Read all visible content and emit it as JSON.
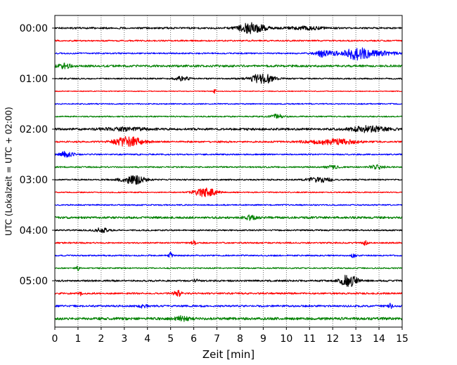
{
  "chart_data": {
    "type": "line",
    "xlabel": "Zeit  [min]",
    "ylabel": "UTC (Lokalzeit = UTC + 02:00)",
    "xlim": [
      0,
      15
    ],
    "x_ticks": [
      "0",
      "1",
      "2",
      "3",
      "4",
      "5",
      "6",
      "7",
      "8",
      "9",
      "10",
      "11",
      "12",
      "13",
      "14",
      "15"
    ],
    "y_tick_labels": [
      "00:00",
      "01:00",
      "02:00",
      "03:00",
      "04:00",
      "05:00"
    ],
    "grid": "vertical dotted lines at each minute",
    "trace_colors": [
      "#000000",
      "#ff0000",
      "#0000ff",
      "#008000"
    ],
    "series": [
      {
        "start_utc": "00:00",
        "color": "#000000",
        "base_amplitude": 1.2,
        "events": [
          {
            "t": 8.5,
            "amp": 7,
            "width": 0.6
          },
          {
            "t": 10.8,
            "amp": 2,
            "width": 0.8
          }
        ]
      },
      {
        "start_utc": "00:15",
        "color": "#ff0000",
        "base_amplitude": 1.0,
        "events": []
      },
      {
        "start_utc": "00:30",
        "color": "#0000ff",
        "base_amplitude": 1.0,
        "events": [
          {
            "t": 13.1,
            "amp": 10,
            "width": 0.5
          },
          {
            "t": 11.8,
            "amp": 3,
            "width": 0.6
          },
          {
            "t": 14.2,
            "amp": 3,
            "width": 0.6
          },
          {
            "t": 11.5,
            "amp": 3,
            "width": 0.15
          }
        ]
      },
      {
        "start_utc": "00:45",
        "color": "#008000",
        "base_amplitude": 1.5,
        "events": [
          {
            "t": 0.4,
            "amp": 3,
            "width": 0.3
          }
        ]
      },
      {
        "start_utc": "01:00",
        "color": "#000000",
        "base_amplitude": 1.0,
        "events": [
          {
            "t": 8.95,
            "amp": 7,
            "width": 0.5
          },
          {
            "t": 5.5,
            "amp": 3,
            "width": 0.3
          }
        ]
      },
      {
        "start_utc": "01:15",
        "color": "#ff0000",
        "base_amplitude": 0.6,
        "events": [
          {
            "t": 6.9,
            "amp": 4,
            "width": 0.05
          }
        ]
      },
      {
        "start_utc": "01:30",
        "color": "#0000ff",
        "base_amplitude": 0.8,
        "events": []
      },
      {
        "start_utc": "01:45",
        "color": "#008000",
        "base_amplitude": 0.9,
        "events": [
          {
            "t": 9.6,
            "amp": 3,
            "width": 0.3
          }
        ]
      },
      {
        "start_utc": "02:00",
        "color": "#000000",
        "base_amplitude": 1.5,
        "events": [
          {
            "t": 13.5,
            "amp": 4,
            "width": 0.8
          },
          {
            "t": 3.0,
            "amp": 2,
            "width": 1.0
          }
        ]
      },
      {
        "start_utc": "02:15",
        "color": "#ff0000",
        "base_amplitude": 1.2,
        "events": [
          {
            "t": 3.2,
            "amp": 7,
            "width": 0.6
          },
          {
            "t": 12.0,
            "amp": 4,
            "width": 1.0
          }
        ]
      },
      {
        "start_utc": "02:30",
        "color": "#0000ff",
        "base_amplitude": 1.0,
        "events": [
          {
            "t": 0.5,
            "amp": 4,
            "width": 0.3
          }
        ]
      },
      {
        "start_utc": "02:45",
        "color": "#008000",
        "base_amplitude": 1.0,
        "events": [
          {
            "t": 13.9,
            "amp": 3,
            "width": 0.3
          },
          {
            "t": 12.0,
            "amp": 2,
            "width": 0.3
          }
        ]
      },
      {
        "start_utc": "03:00",
        "color": "#000000",
        "base_amplitude": 1.0,
        "events": [
          {
            "t": 3.4,
            "amp": 6,
            "width": 0.5
          },
          {
            "t": 11.4,
            "amp": 4,
            "width": 0.5
          }
        ]
      },
      {
        "start_utc": "03:15",
        "color": "#ff0000",
        "base_amplitude": 0.8,
        "events": [
          {
            "t": 6.5,
            "amp": 6,
            "width": 0.5
          }
        ]
      },
      {
        "start_utc": "03:30",
        "color": "#0000ff",
        "base_amplitude": 0.9,
        "events": []
      },
      {
        "start_utc": "03:45",
        "color": "#008000",
        "base_amplitude": 1.5,
        "events": [
          {
            "t": 8.4,
            "amp": 3,
            "width": 0.3
          }
        ]
      },
      {
        "start_utc": "04:00",
        "color": "#000000",
        "base_amplitude": 1.0,
        "events": [
          {
            "t": 2.0,
            "amp": 3,
            "width": 0.3
          }
        ]
      },
      {
        "start_utc": "04:15",
        "color": "#ff0000",
        "base_amplitude": 1.0,
        "events": [
          {
            "t": 6.0,
            "amp": 3,
            "width": 0.1
          },
          {
            "t": 13.4,
            "amp": 3,
            "width": 0.1
          }
        ]
      },
      {
        "start_utc": "04:30",
        "color": "#0000ff",
        "base_amplitude": 1.0,
        "events": [
          {
            "t": 5.0,
            "amp": 5,
            "width": 0.08
          },
          {
            "t": 12.9,
            "amp": 3,
            "width": 0.1
          }
        ]
      },
      {
        "start_utc": "04:45",
        "color": "#008000",
        "base_amplitude": 0.9,
        "events": [
          {
            "t": 1.0,
            "amp": 3,
            "width": 0.1
          }
        ]
      },
      {
        "start_utc": "05:00",
        "color": "#000000",
        "base_amplitude": 1.2,
        "events": [
          {
            "t": 12.7,
            "amp": 9,
            "width": 0.35
          },
          {
            "t": 6.1,
            "amp": 2,
            "width": 0.1
          }
        ]
      },
      {
        "start_utc": "05:15",
        "color": "#ff0000",
        "base_amplitude": 1.2,
        "events": [
          {
            "t": 5.3,
            "amp": 5,
            "width": 0.15
          },
          {
            "t": 1.1,
            "amp": 3,
            "width": 0.1
          }
        ]
      },
      {
        "start_utc": "05:30",
        "color": "#0000ff",
        "base_amplitude": 1.3,
        "events": [
          {
            "t": 14.5,
            "amp": 3,
            "width": 0.1
          },
          {
            "t": 3.8,
            "amp": 2,
            "width": 0.2
          }
        ]
      },
      {
        "start_utc": "05:45",
        "color": "#008000",
        "base_amplitude": 1.8,
        "events": [
          {
            "t": 5.5,
            "amp": 3,
            "width": 0.3
          }
        ]
      }
    ]
  }
}
